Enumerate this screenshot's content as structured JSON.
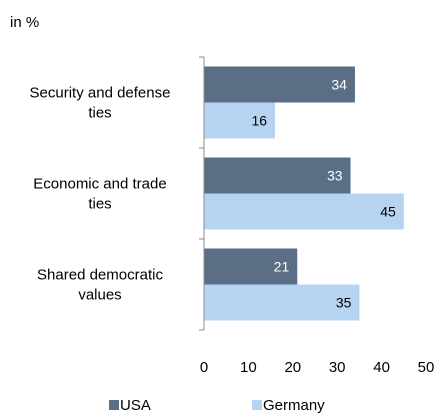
{
  "chart_data": {
    "type": "bar",
    "orientation": "horizontal",
    "unit_label": "in %",
    "categories": [
      [
        "Security and defense",
        "ties"
      ],
      [
        "Economic and trade",
        "ties"
      ],
      [
        "Shared democratic",
        "values"
      ]
    ],
    "series": [
      {
        "name": "USA",
        "values": [
          34,
          33,
          21
        ],
        "color": "#5a6f86",
        "label_color": "#ffffff"
      },
      {
        "name": "Germany",
        "values": [
          16,
          45,
          35
        ],
        "color": "#b7d3f2",
        "label_color": "#000000"
      }
    ],
    "xlim": [
      0,
      50
    ],
    "xticks": [
      0,
      10,
      20,
      30,
      40,
      50
    ],
    "grid": false,
    "legend_position": "bottom"
  }
}
